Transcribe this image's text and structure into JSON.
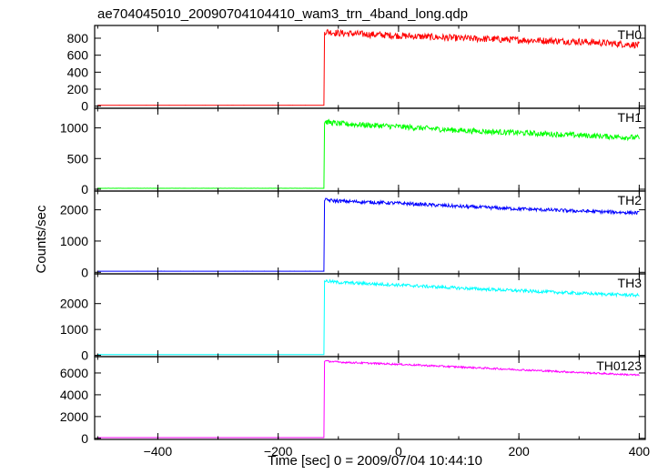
{
  "title": "ae704045010_20090704104410_wam3_trn_4band_long.qdp",
  "ylabel": "Counts/sec",
  "xlabel": "Time [sec] 0 = 2009/07/04 10:44:10",
  "chart_data": {
    "type": "line",
    "title": "ae704045010_20090704104410_wam3_trn_4band_long.qdp",
    "xlabel": "Time [sec] 0 = 2009/07/04 10:44:10",
    "ylabel": "Counts/sec",
    "xlim": [
      -505,
      410
    ],
    "x_ticks": [
      -400,
      -200,
      0,
      200,
      400
    ],
    "x_tick_labels": [
      "−400",
      "−200",
      "0",
      "200",
      "400"
    ],
    "grid": false,
    "step_time": -123,
    "series": [
      {
        "name": "TH0",
        "color": "#ff0000",
        "ylim": [
          -25,
          950
        ],
        "y_ticks": [
          0,
          200,
          400,
          600,
          800
        ],
        "y_tick_labels": [
          "0",
          "200",
          "400",
          "600",
          "800"
        ],
        "x": [
          -500,
          -124,
          -123,
          -100,
          0,
          100,
          200,
          300,
          400
        ],
        "values": [
          10,
          10,
          880,
          860,
          830,
          800,
          780,
          760,
          720
        ],
        "noise": 40
      },
      {
        "name": "TH1",
        "color": "#00ff00",
        "ylim": [
          -30,
          1320
        ],
        "y_ticks": [
          0,
          500,
          1000
        ],
        "y_tick_labels": [
          "0",
          "500",
          "1000"
        ],
        "x": [
          -500,
          -124,
          -123,
          -100,
          0,
          100,
          200,
          300,
          400
        ],
        "values": [
          15,
          15,
          1100,
          1070,
          1020,
          960,
          920,
          880,
          840
        ],
        "noise": 45
      },
      {
        "name": "TH2",
        "color": "#0000ff",
        "ylim": [
          -50,
          2600
        ],
        "y_ticks": [
          0,
          1000,
          2000
        ],
        "y_tick_labels": [
          "0",
          "1000",
          "2000"
        ],
        "x": [
          -500,
          -124,
          -123,
          -100,
          0,
          100,
          200,
          300,
          400
        ],
        "values": [
          35,
          35,
          2320,
          2280,
          2210,
          2110,
          2030,
          1960,
          1900
        ],
        "noise": 55
      },
      {
        "name": "TH3",
        "color": "#00ffff",
        "ylim": [
          -50,
          3150
        ],
        "y_ticks": [
          0,
          1000,
          2000
        ],
        "y_tick_labels": [
          "0",
          "1000",
          "2000"
        ],
        "x": [
          -500,
          -124,
          -123,
          -100,
          0,
          100,
          200,
          300,
          400
        ],
        "values": [
          30,
          30,
          2880,
          2820,
          2720,
          2600,
          2500,
          2400,
          2320
        ],
        "noise": 60
      },
      {
        "name": "TH0123",
        "color": "#ff00ff",
        "ylim": [
          -100,
          7500
        ],
        "y_ticks": [
          0,
          2000,
          4000,
          6000
        ],
        "y_tick_labels": [
          "0",
          "2000",
          "4000",
          "6000"
        ],
        "x": [
          -500,
          -124,
          -123,
          -100,
          0,
          100,
          200,
          300,
          400
        ],
        "values": [
          70,
          70,
          7100,
          7000,
          6800,
          6550,
          6300,
          6050,
          5800
        ],
        "noise": 80
      }
    ]
  }
}
